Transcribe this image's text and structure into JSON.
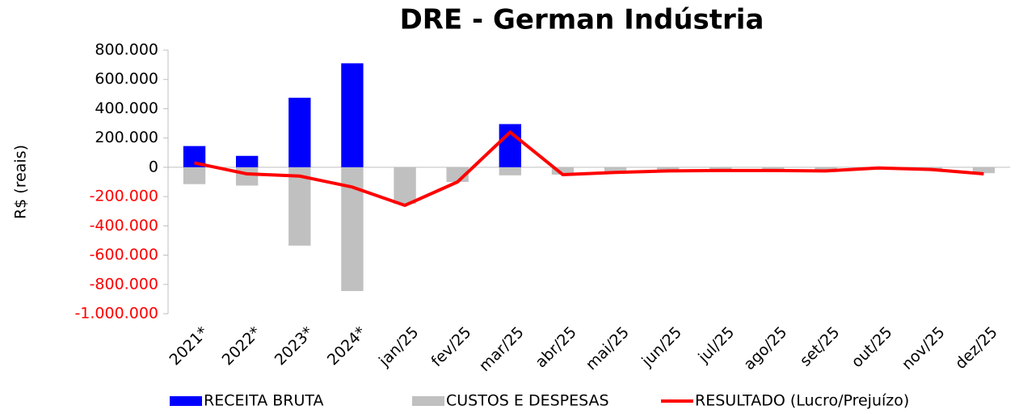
{
  "chart_data": {
    "type": "bar_line",
    "title": "DRE - German Indústria",
    "y_label": "R$ (reais)",
    "categories": [
      "2021*",
      "2022*",
      "2023*",
      "2024*",
      "jan/25",
      "fev/25",
      "mar/25",
      "abr/25",
      "mai/25",
      "jun/25",
      "jul/25",
      "ago/25",
      "set/25",
      "out/25",
      "nov/25",
      "dez/25"
    ],
    "series": [
      {
        "name": "RECEITA BRUTA",
        "type": "bar",
        "color": "#0000ff",
        "values": [
          145000,
          78000,
          475000,
          710000,
          0,
          0,
          295000,
          0,
          0,
          0,
          0,
          0,
          0,
          0,
          0,
          0
        ]
      },
      {
        "name": "CUSTOS E DESPESAS",
        "type": "bar",
        "color": "#c0c0c0",
        "values": [
          -115000,
          -125000,
          -535000,
          -845000,
          -250000,
          -100000,
          -55000,
          -50000,
          -30000,
          -20000,
          -20000,
          -20000,
          -25000,
          -5000,
          -15000,
          -40000
        ]
      },
      {
        "name": "RESULTADO (Lucro/Prejuízo)",
        "type": "line",
        "color": "#ff0000",
        "values": [
          30000,
          -45000,
          -60000,
          -135000,
          -260000,
          -100000,
          240000,
          -50000,
          -35000,
          -25000,
          -22000,
          -22000,
          -25000,
          -5000,
          -15000,
          -45000
        ]
      }
    ],
    "ylim": [
      -1000000,
      800000
    ],
    "yticks": [
      {
        "value": -1000000,
        "label": "-1.000.000"
      },
      {
        "value": -800000,
        "label": "-800.000"
      },
      {
        "value": -600000,
        "label": "-600.000"
      },
      {
        "value": -400000,
        "label": "-400.000"
      },
      {
        "value": -200000,
        "label": "-200.000"
      },
      0,
      {
        "value": 200000,
        "label": "200.000"
      },
      {
        "value": 400000,
        "label": "400.000"
      },
      {
        "value": 600000,
        "label": "600.000"
      },
      {
        "value": 800000,
        "label": "800.000"
      }
    ],
    "negative_tick_color": "#ff0000",
    "legend": "bottom"
  }
}
